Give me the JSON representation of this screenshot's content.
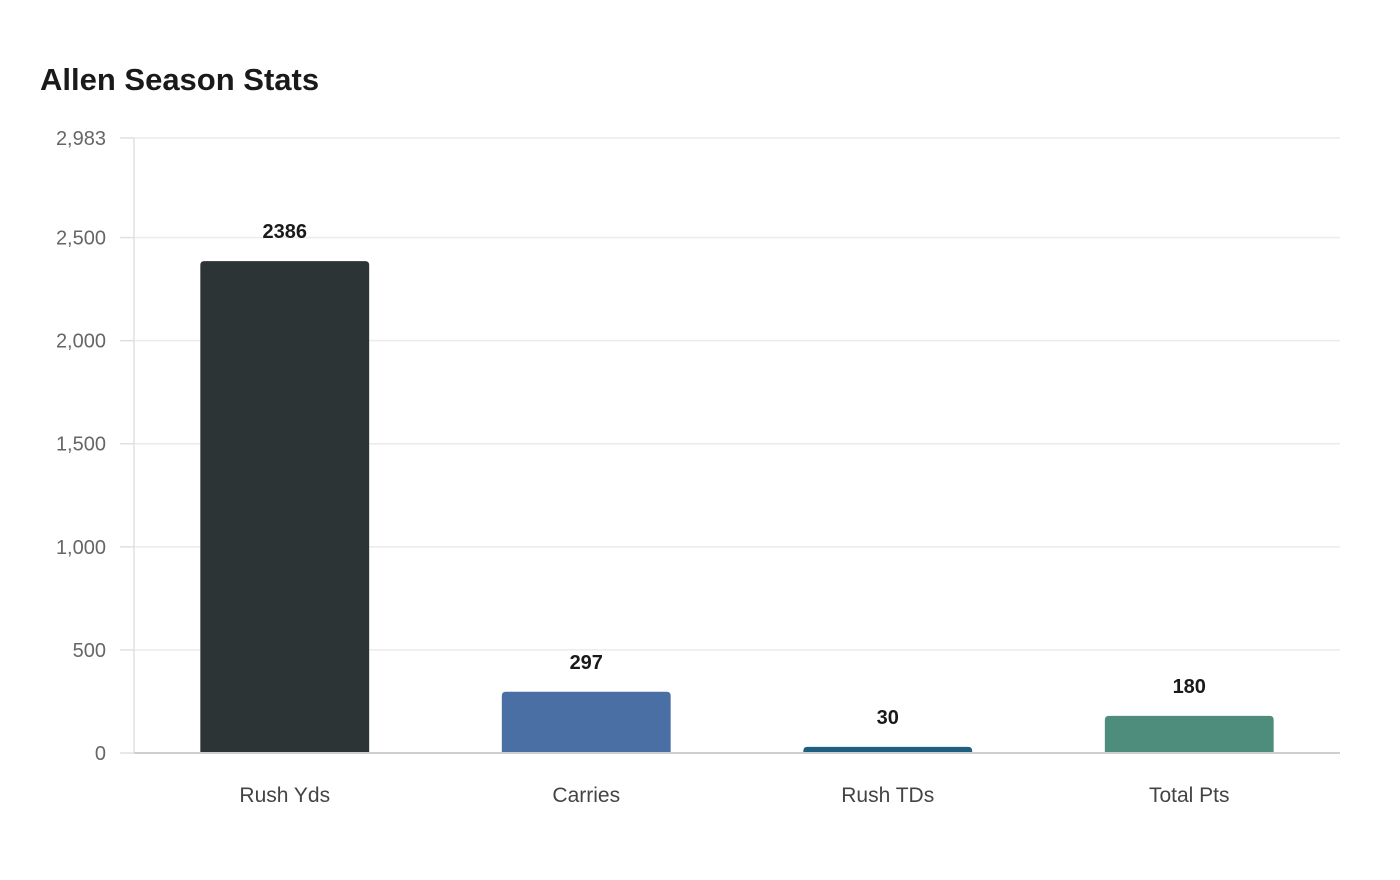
{
  "chart_data": {
    "type": "bar",
    "title": "Allen Season Stats",
    "xlabel": "",
    "ylabel": "",
    "categories": [
      "Rush Yds",
      "Carries",
      "Rush TDs",
      "Total Pts"
    ],
    "values": [
      2386,
      297,
      30,
      180
    ],
    "data_labels": [
      "2386",
      "297",
      "30",
      "180"
    ],
    "ylim": [
      0,
      2983
    ],
    "y_ticks": [
      0,
      500,
      1000,
      1500,
      2000,
      2500,
      2983
    ],
    "y_tick_labels": [
      "0",
      "500",
      "1,000",
      "1,500",
      "2,000",
      "2,500",
      "2,983"
    ],
    "colors": [
      "#2d3436",
      "#4a6fa5",
      "#1e5f7f",
      "#4e8d7c"
    ],
    "grid": true,
    "legend": "none"
  }
}
